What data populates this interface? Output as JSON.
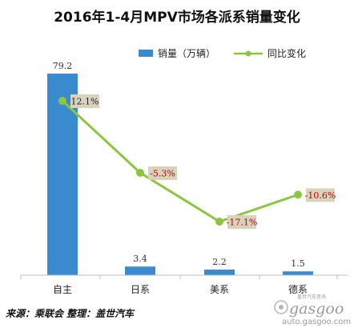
{
  "chart_data": {
    "type": "bar",
    "title": "2016年1-4月MPV市场各派系销量变化",
    "categories": [
      "自主",
      "日系",
      "美系",
      "德系"
    ],
    "series": [
      {
        "name": "销量（万辆）",
        "kind": "bar",
        "color": "#3a8ad0",
        "values": [
          79.2,
          3.4,
          2.2,
          1.5
        ],
        "labels": [
          "79.2",
          "3.4",
          "2.2",
          "1.5"
        ]
      },
      {
        "name": "同比变化",
        "kind": "line",
        "color": "#8cc63f",
        "values": [
          12.1,
          -5.3,
          -17.1,
          -10.6
        ],
        "labels": [
          "12.1%",
          "-5.3%",
          "-17.1%",
          "-10.6%"
        ],
        "label_colors": [
          "#222222",
          "#c00000",
          "#c00000",
          "#c00000"
        ],
        "label_box_color": "#d9d3be"
      }
    ],
    "bar_axis_range": [
      0,
      79.2
    ],
    "line_axis_range": [
      -17.1,
      12.1
    ],
    "legend_position": "top-right",
    "grid": false
  },
  "source_text": "来源：乘联会  整理：盖世汽车",
  "watermark": {
    "name": "gasgoo",
    "url": "auto.gasgoo.com",
    "small": "盖世汽车资讯"
  }
}
